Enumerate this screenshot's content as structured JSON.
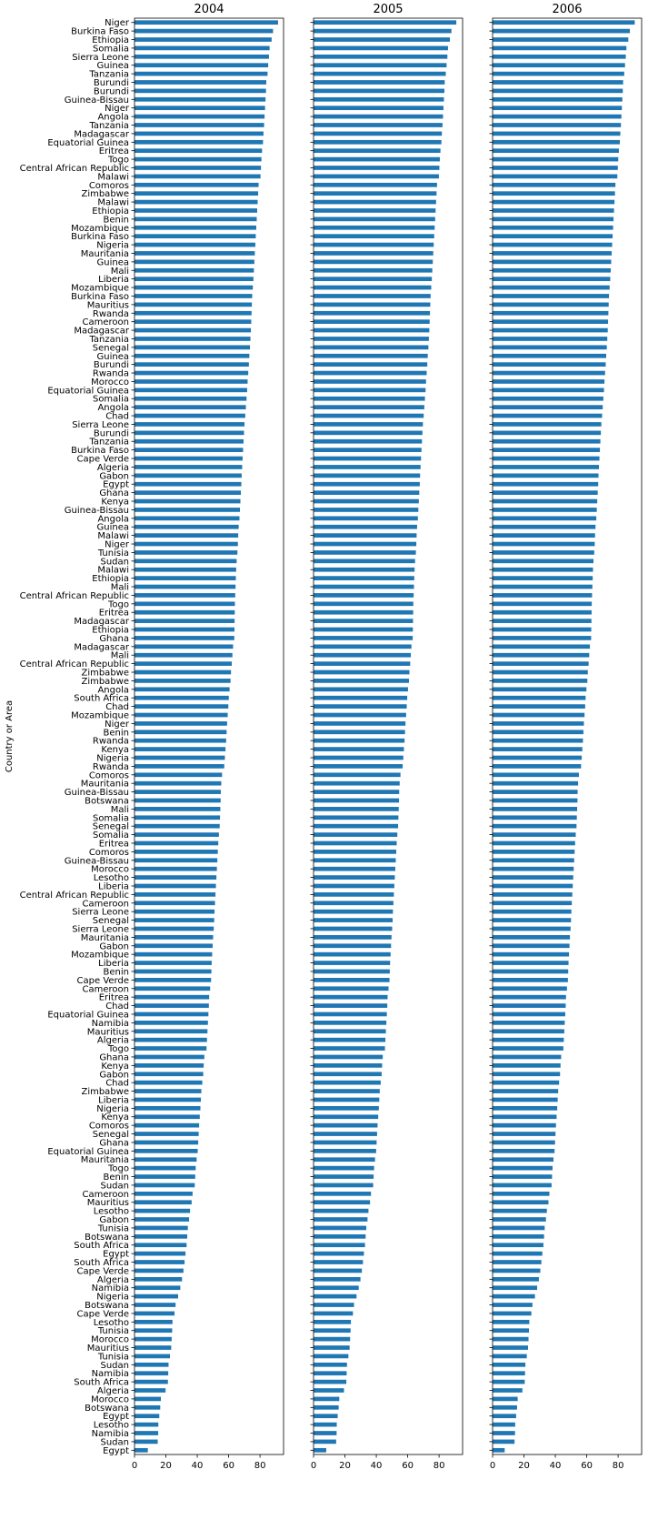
{
  "chart_data": {
    "type": "bar",
    "orientation": "horizontal",
    "ylabel": "Country or Area",
    "bar_color": "#1f77b4",
    "xlim": [
      0,
      95
    ],
    "xticks": [
      0,
      20,
      40,
      60,
      80
    ],
    "categories": [
      "Niger",
      "Burkina Faso",
      "Ethiopia",
      "Somalia",
      "Sierra Leone",
      "Guinea",
      "Tanzania",
      "Burundi",
      "Burundi",
      "Guinea-Bissau",
      "Niger",
      "Angola",
      "Tanzania",
      "Madagascar",
      "Equatorial Guinea",
      "Eritrea",
      "Togo",
      "Central African Republic",
      "Malawi",
      "Comoros",
      "Zimbabwe",
      "Malawi",
      "Ethiopia",
      "Benin",
      "Mozambique",
      "Burkina Faso",
      "Nigeria",
      "Mauritania",
      "Guinea",
      "Mali",
      "Liberia",
      "Mozambique",
      "Burkina Faso",
      "Mauritius",
      "Rwanda",
      "Cameroon",
      "Madagascar",
      "Tanzania",
      "Senegal",
      "Guinea",
      "Burundi",
      "Rwanda",
      "Morocco",
      "Equatorial Guinea",
      "Somalia",
      "Angola",
      "Chad",
      "Sierra Leone",
      "Burundi",
      "Tanzania",
      "Burkina Faso",
      "Cape Verde",
      "Algeria",
      "Gabon",
      "Egypt",
      "Ghana",
      "Kenya",
      "Guinea-Bissau",
      "Angola",
      "Guinea",
      "Malawi",
      "Niger",
      "Tunisia",
      "Sudan",
      "Malawi",
      "Ethiopia",
      "Mali",
      "Central African Republic",
      "Togo",
      "Eritrea",
      "Madagascar",
      "Ethiopia",
      "Ghana",
      "Madagascar",
      "Mali",
      "Central African Republic",
      "Zimbabwe",
      "Zimbabwe",
      "Angola",
      "South Africa",
      "Chad",
      "Mozambique",
      "Niger",
      "Benin",
      "Rwanda",
      "Kenya",
      "Nigeria",
      "Rwanda",
      "Comoros",
      "Mauritania",
      "Guinea-Bissau",
      "Botswana",
      "Mali",
      "Somalia",
      "Senegal",
      "Somalia",
      "Eritrea",
      "Comoros",
      "Guinea-Bissau",
      "Morocco",
      "Lesotho",
      "Liberia",
      "Central African Republic",
      "Cameroon",
      "Sierra Leone",
      "Senegal",
      "Sierra Leone",
      "Mauritania",
      "Gabon",
      "Mozambique",
      "Liberia",
      "Benin",
      "Cape Verde",
      "Cameroon",
      "Eritrea",
      "Chad",
      "Equatorial Guinea",
      "Namibia",
      "Mauritius",
      "Algeria",
      "Togo",
      "Ghana",
      "Kenya",
      "Gabon",
      "Chad",
      "Zimbabwe",
      "Liberia",
      "Nigeria",
      "Kenya",
      "Comoros",
      "Senegal",
      "Ghana",
      "Equatorial Guinea",
      "Mauritania",
      "Togo",
      "Benin",
      "Sudan",
      "Cameroon",
      "Mauritius",
      "Lesotho",
      "Gabon",
      "Tunisia",
      "Botswana",
      "South Africa",
      "Egypt",
      "South Africa",
      "Cape Verde",
      "Algeria",
      "Namibia",
      "Nigeria",
      "Botswana",
      "Cape Verde",
      "Lesotho",
      "Tunisia",
      "Morocco",
      "Mauritius",
      "Tunisia",
      "Sudan",
      "Namibia",
      "South Africa",
      "Algeria",
      "Morocco",
      "Botswana",
      "Egypt",
      "Lesotho",
      "Namibia",
      "Sudan",
      "Egypt"
    ],
    "panels": [
      {
        "title": "2004",
        "values": [
          91.5,
          88.3,
          87.4,
          86.1,
          85.7,
          85.2,
          84.8,
          84.0,
          83.8,
          83.5,
          83.2,
          82.9,
          82.6,
          82.2,
          81.9,
          81.3,
          80.9,
          80.6,
          80.3,
          79.1,
          78.8,
          78.5,
          78.2,
          77.9,
          77.6,
          77.3,
          77.0,
          76.7,
          76.4,
          76.1,
          75.8,
          75.4,
          75.0,
          74.8,
          74.6,
          74.4,
          74.2,
          73.9,
          73.6,
          73.2,
          72.9,
          72.5,
          72.1,
          71.8,
          71.4,
          71.0,
          70.6,
          70.1,
          69.8,
          69.5,
          69.2,
          68.9,
          68.6,
          68.3,
          68.1,
          67.8,
          67.5,
          67.2,
          66.9,
          66.4,
          66.1,
          65.9,
          65.6,
          65.1,
          64.8,
          64.6,
          64.4,
          64.2,
          64.0,
          63.9,
          63.8,
          63.7,
          63.6,
          62.8,
          62.4,
          62.0,
          61.5,
          61.2,
          60.6,
          60.1,
          59.8,
          59.4,
          59.0,
          58.7,
          58.4,
          58.0,
          57.6,
          57.2,
          55.8,
          55.3,
          55.0,
          54.9,
          54.7,
          54.5,
          54.3,
          53.8,
          53.4,
          53.1,
          52.8,
          52.5,
          52.2,
          51.9,
          51.6,
          51.3,
          51.0,
          50.8,
          50.5,
          50.1,
          49.8,
          49.5,
          49.2,
          49.0,
          48.8,
          48.2,
          47.6,
          47.4,
          47.1,
          46.8,
          46.5,
          46.2,
          45.9,
          44.5,
          44.1,
          43.8,
          43.2,
          42.6,
          42.3,
          42.0,
          41.6,
          41.2,
          40.9,
          40.6,
          40.3,
          39.6,
          39.0,
          38.7,
          38.4,
          37.0,
          36.4,
          35.4,
          34.8,
          34.0,
          33.6,
          33.2,
          32.5,
          31.9,
          31.2,
          30.3,
          29.2,
          27.8,
          26.2,
          25.5,
          24.2,
          24.0,
          23.7,
          23.4,
          22.6,
          21.7,
          21.5,
          21.3,
          19.8,
          16.8,
          16.4,
          15.8,
          15.2,
          15.1,
          14.8,
          8.5
        ]
      },
      {
        "title": "2005",
        "values": [
          91.0,
          87.9,
          86.9,
          85.7,
          85.3,
          84.8,
          84.3,
          83.6,
          83.4,
          83.1,
          82.8,
          82.5,
          82.2,
          81.8,
          81.5,
          80.9,
          80.5,
          80.2,
          79.9,
          78.7,
          78.4,
          78.1,
          77.8,
          77.5,
          77.2,
          76.9,
          76.6,
          76.3,
          76.0,
          75.7,
          75.4,
          75.0,
          74.6,
          74.4,
          74.2,
          74.0,
          73.8,
          73.5,
          73.2,
          72.8,
          72.5,
          72.1,
          71.7,
          71.4,
          71.0,
          70.6,
          70.2,
          69.7,
          69.4,
          69.1,
          68.8,
          68.5,
          68.2,
          67.9,
          67.7,
          67.4,
          67.1,
          66.8,
          66.5,
          66.0,
          65.7,
          65.5,
          65.2,
          64.7,
          64.4,
          64.2,
          64.0,
          63.8,
          63.6,
          63.5,
          63.4,
          63.3,
          63.2,
          62.4,
          62.0,
          61.6,
          61.1,
          60.8,
          60.2,
          59.7,
          59.4,
          59.0,
          58.6,
          58.3,
          58.0,
          57.6,
          57.2,
          56.8,
          55.4,
          54.9,
          54.6,
          54.5,
          54.3,
          54.1,
          53.9,
          53.4,
          53.0,
          52.7,
          52.4,
          52.1,
          51.8,
          51.5,
          51.2,
          50.9,
          50.6,
          50.4,
          50.1,
          49.7,
          49.4,
          49.1,
          48.8,
          48.6,
          48.4,
          47.8,
          47.2,
          47.0,
          46.7,
          46.4,
          46.1,
          45.8,
          45.5,
          44.1,
          43.7,
          43.4,
          42.8,
          42.2,
          41.9,
          41.6,
          41.2,
          40.8,
          40.5,
          40.2,
          39.9,
          39.2,
          38.6,
          38.3,
          38.0,
          36.6,
          36.0,
          35.0,
          34.4,
          33.6,
          33.2,
          32.8,
          32.1,
          31.5,
          30.8,
          29.9,
          28.8,
          27.4,
          25.8,
          25.1,
          23.8,
          23.6,
          23.3,
          23.0,
          22.2,
          21.3,
          21.1,
          20.9,
          19.4,
          16.4,
          16.0,
          15.4,
          14.8,
          14.7,
          14.4,
          8.1
        ]
      },
      {
        "title": "2006",
        "values": [
          90.6,
          87.5,
          86.5,
          85.3,
          84.9,
          84.4,
          83.9,
          83.2,
          83.0,
          82.7,
          82.4,
          82.1,
          81.8,
          81.4,
          81.1,
          80.5,
          80.1,
          79.8,
          79.5,
          78.3,
          78.0,
          77.7,
          77.4,
          77.1,
          76.8,
          76.5,
          76.2,
          75.9,
          75.6,
          75.3,
          75.0,
          74.6,
          74.2,
          74.0,
          73.8,
          73.6,
          73.4,
          73.1,
          72.8,
          72.4,
          72.1,
          71.7,
          71.3,
          71.0,
          70.6,
          70.2,
          69.8,
          69.3,
          69.0,
          68.7,
          68.4,
          68.1,
          67.8,
          67.5,
          67.3,
          67.0,
          66.7,
          66.4,
          66.1,
          65.6,
          65.3,
          65.1,
          64.8,
          64.3,
          64.0,
          63.8,
          63.6,
          63.4,
          63.2,
          63.1,
          63.0,
          62.9,
          62.8,
          62.0,
          61.6,
          61.2,
          60.7,
          60.4,
          59.8,
          59.3,
          59.0,
          58.6,
          58.2,
          57.9,
          57.6,
          57.2,
          56.8,
          56.4,
          55.0,
          54.5,
          54.2,
          54.1,
          53.9,
          53.7,
          53.5,
          53.0,
          52.6,
          52.3,
          52.0,
          51.7,
          51.4,
          51.1,
          50.8,
          50.5,
          50.2,
          50.0,
          49.7,
          49.3,
          49.0,
          48.7,
          48.4,
          48.2,
          48.0,
          47.4,
          46.8,
          46.6,
          46.3,
          46.0,
          45.7,
          45.4,
          45.1,
          43.7,
          43.3,
          43.0,
          42.4,
          41.8,
          41.5,
          41.2,
          40.8,
          40.4,
          40.1,
          39.8,
          39.5,
          38.8,
          38.2,
          37.9,
          37.6,
          36.2,
          35.6,
          34.6,
          34.0,
          33.2,
          32.8,
          32.4,
          31.7,
          31.1,
          30.4,
          29.5,
          28.4,
          27.0,
          25.4,
          24.7,
          23.4,
          23.2,
          22.9,
          22.6,
          21.8,
          20.9,
          20.7,
          20.5,
          19.0,
          16.0,
          15.6,
          15.0,
          14.4,
          14.3,
          14.0,
          7.7
        ]
      }
    ]
  }
}
